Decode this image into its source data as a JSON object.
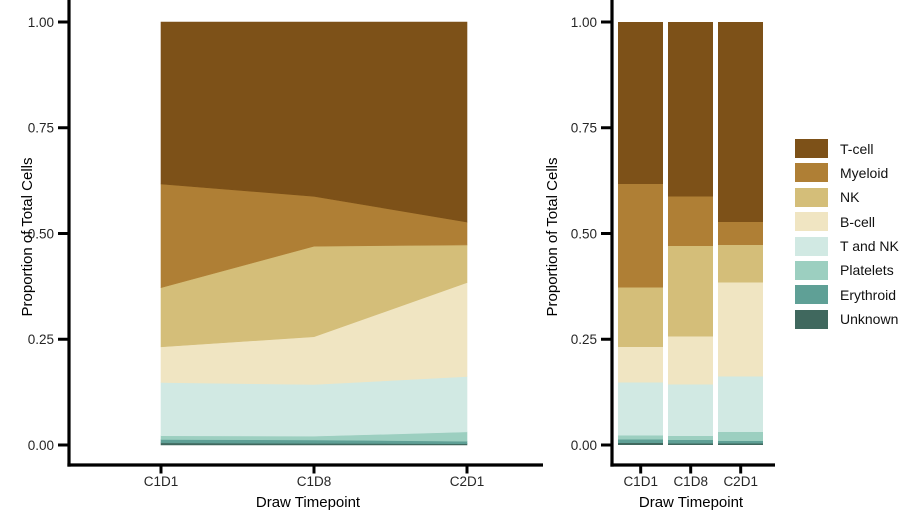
{
  "colors": {
    "background": "#ffffff",
    "axis_line": "#000000",
    "tick_text": "#262626",
    "title_text": "#000000"
  },
  "legend": {
    "position": "right",
    "items": [
      {
        "label": "T-cell",
        "color": "#7D5118"
      },
      {
        "label": "Myeloid",
        "color": "#AF7F35"
      },
      {
        "label": "NK",
        "color": "#D4BE79"
      },
      {
        "label": "B-cell",
        "color": "#F0E5C2"
      },
      {
        "label": "T and NK",
        "color": "#D1E9E3"
      },
      {
        "label": "Platelets",
        "color": "#9CCFC0"
      },
      {
        "label": "Erythroid",
        "color": "#5FA096"
      },
      {
        "label": "Unknown",
        "color": "#40685E"
      }
    ]
  },
  "chart_data": [
    {
      "type": "area",
      "stacked": true,
      "stack_order": "bottom-to-top",
      "x": [
        "C1D1",
        "C1D8",
        "C2D1"
      ],
      "xlabel": "Draw Timepoint",
      "ylabel": "Proportion of Total Cells",
      "ylim": [
        0,
        1
      ],
      "y_ticks": [
        "1.00",
        "0.75",
        "0.50",
        "0.25",
        "0.00"
      ],
      "grid": false,
      "series": [
        {
          "name": "Unknown",
          "color": "#40685E",
          "values": [
            0.005,
            0.004,
            0.003
          ]
        },
        {
          "name": "Erythroid",
          "color": "#5FA096",
          "values": [
            0.008,
            0.008,
            0.006
          ]
        },
        {
          "name": "Platelets",
          "color": "#9CCFC0",
          "values": [
            0.009,
            0.009,
            0.022
          ]
        },
        {
          "name": "T and NK",
          "color": "#D1E9E3",
          "values": [
            0.126,
            0.122,
            0.131
          ]
        },
        {
          "name": "B-cell",
          "color": "#F0E5C2",
          "values": [
            0.084,
            0.113,
            0.222
          ]
        },
        {
          "name": "NK",
          "color": "#D4BE79",
          "values": [
            0.14,
            0.214,
            0.089
          ]
        },
        {
          "name": "Myeloid",
          "color": "#AF7F35",
          "values": [
            0.245,
            0.118,
            0.054
          ]
        },
        {
          "name": "T-cell",
          "color": "#7D5118",
          "values": [
            0.383,
            0.412,
            0.473
          ]
        }
      ]
    },
    {
      "type": "bar",
      "stacked": true,
      "stack_order": "bottom-to-top",
      "x": [
        "C1D1",
        "C1D8",
        "C2D1"
      ],
      "xlabel": "Draw Timepoint",
      "ylabel": "Proportion of Total Cells",
      "ylim": [
        0,
        1
      ],
      "y_ticks": [
        "1.00",
        "0.75",
        "0.50",
        "0.25",
        "0.00"
      ],
      "grid": false,
      "series": [
        {
          "name": "Unknown",
          "color": "#40685E",
          "values": [
            0.005,
            0.004,
            0.003
          ]
        },
        {
          "name": "Erythroid",
          "color": "#5FA096",
          "values": [
            0.008,
            0.008,
            0.006
          ]
        },
        {
          "name": "Platelets",
          "color": "#9CCFC0",
          "values": [
            0.009,
            0.009,
            0.022
          ]
        },
        {
          "name": "T and NK",
          "color": "#D1E9E3",
          "values": [
            0.126,
            0.122,
            0.131
          ]
        },
        {
          "name": "B-cell",
          "color": "#F0E5C2",
          "values": [
            0.084,
            0.113,
            0.222
          ]
        },
        {
          "name": "NK",
          "color": "#D4BE79",
          "values": [
            0.14,
            0.214,
            0.089
          ]
        },
        {
          "name": "Myeloid",
          "color": "#AF7F35",
          "values": [
            0.245,
            0.118,
            0.054
          ]
        },
        {
          "name": "T-cell",
          "color": "#7D5118",
          "values": [
            0.383,
            0.412,
            0.473
          ]
        }
      ]
    }
  ]
}
